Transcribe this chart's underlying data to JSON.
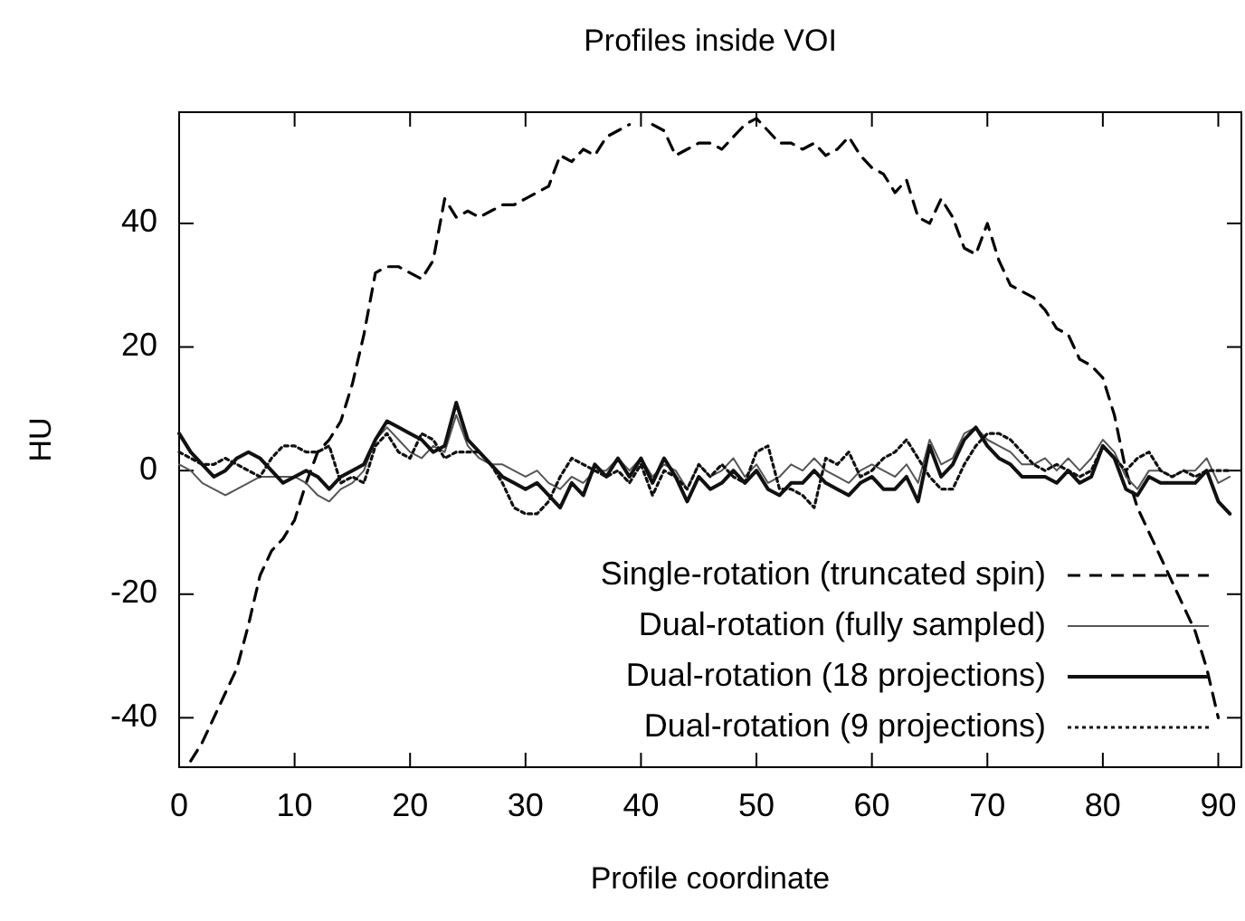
{
  "chart_data": {
    "type": "line",
    "title": "Profiles inside VOI",
    "xlabel": "Profile coordinate",
    "ylabel": "HU",
    "x": [
      0,
      1,
      2,
      3,
      4,
      5,
      6,
      7,
      8,
      9,
      10,
      11,
      12,
      13,
      14,
      15,
      16,
      17,
      18,
      19,
      20,
      21,
      22,
      23,
      24,
      25,
      26,
      27,
      28,
      29,
      30,
      31,
      32,
      33,
      34,
      35,
      36,
      37,
      38,
      39,
      40,
      41,
      42,
      43,
      44,
      45,
      46,
      47,
      48,
      49,
      50,
      51,
      52,
      53,
      54,
      55,
      56,
      57,
      58,
      59,
      60,
      61,
      62,
      63,
      64,
      65,
      66,
      67,
      68,
      69,
      70,
      71,
      72,
      73,
      74,
      75,
      76,
      77,
      78,
      79,
      80,
      81,
      82,
      83,
      84,
      85,
      86,
      87,
      88,
      89,
      90,
      91
    ],
    "series": [
      {
        "name": "Single-rotation (truncated spin)",
        "color": "#000000",
        "line_style": "dashed",
        "values": [
          null,
          -47,
          -44,
          -40,
          -36,
          -32,
          -25,
          -17,
          -13,
          -11,
          -8,
          -2,
          3,
          5,
          8,
          14,
          22,
          32,
          33,
          33,
          32,
          31,
          34,
          44,
          41,
          42,
          41,
          42,
          43,
          43,
          44,
          45,
          46,
          51,
          50,
          52,
          51,
          54,
          55,
          56,
          null,
          56,
          55,
          51,
          52,
          53,
          53,
          52,
          54,
          56,
          57,
          55,
          53,
          53,
          52,
          53,
          51,
          52,
          54,
          51,
          49,
          48,
          45,
          47,
          41,
          40,
          44,
          41,
          36,
          35,
          40,
          34,
          30,
          29,
          28,
          26,
          23,
          22,
          18,
          17,
          15,
          9,
          0,
          -6,
          -10,
          -14,
          -18,
          -22,
          -26,
          -32,
          -40,
          null
        ]
      },
      {
        "name": "Dual-rotation (fully sampled)",
        "color": "#555555",
        "line_style": "solid",
        "values": [
          1,
          0,
          -2,
          -3,
          -4,
          -3,
          -2,
          -1,
          -1,
          -1,
          -1,
          -2,
          -4,
          -5,
          -3,
          -2,
          0,
          5,
          7,
          5,
          3,
          2,
          4,
          3,
          9,
          4,
          2,
          1,
          1,
          0,
          -1,
          0,
          -2,
          -3,
          -1,
          -2,
          0,
          0,
          2,
          0,
          2,
          -1,
          1,
          0,
          -3,
          1,
          -1,
          0,
          2,
          -1,
          1,
          -2,
          -1,
          1,
          0,
          2,
          0,
          -1,
          -2,
          0,
          1,
          0,
          -1,
          1,
          -2,
          5,
          1,
          2,
          6,
          7,
          5,
          4,
          3,
          1,
          1,
          2,
          0,
          2,
          0,
          2,
          5,
          3,
          -1,
          -3,
          0,
          0,
          -1,
          0,
          0,
          2,
          -2,
          -1
        ]
      },
      {
        "name": "Dual-rotation (18 projections)",
        "color": "#111111",
        "line_style": "solid",
        "values": [
          6,
          3,
          1,
          -1,
          0,
          2,
          3,
          2,
          0,
          -2,
          -1,
          0,
          -1,
          -3,
          -1,
          0,
          1,
          5,
          8,
          7,
          6,
          5,
          3,
          4,
          11,
          5,
          3,
          1,
          -1,
          -2,
          -3,
          -2,
          -4,
          -6,
          -2,
          -4,
          1,
          -1,
          2,
          -1,
          2,
          -2,
          2,
          -1,
          -5,
          -1,
          -3,
          -2,
          0,
          -2,
          0,
          -3,
          -4,
          -2,
          -2,
          0,
          -2,
          -3,
          -4,
          -2,
          -1,
          -3,
          -3,
          -1,
          -5,
          4,
          -1,
          1,
          5,
          7,
          4,
          2,
          1,
          -1,
          -1,
          -1,
          -2,
          0,
          -2,
          -1,
          4,
          2,
          -3,
          -4,
          -1,
          -2,
          -2,
          -2,
          -2,
          0,
          -5,
          -7
        ]
      },
      {
        "name": "Dual-rotation (9 projections)",
        "color": "#111111",
        "line_style": "dotted",
        "values": [
          3,
          2,
          1,
          1,
          2,
          1,
          0,
          -1,
          2,
          4,
          4,
          3,
          3,
          4,
          -2,
          -1,
          -2,
          4,
          6,
          3,
          2,
          6,
          5,
          2,
          3,
          3,
          3,
          1,
          -2,
          -6,
          -7,
          -7,
          -5,
          -1,
          2,
          1,
          0,
          -1,
          0,
          -2,
          1,
          -4,
          0,
          -1,
          -3,
          1,
          -1,
          1,
          -1,
          -2,
          3,
          4,
          -3,
          -3,
          -4,
          -6,
          2,
          1,
          3,
          -1,
          0,
          2,
          3,
          5,
          2,
          -1,
          -3,
          -3,
          1,
          4,
          6,
          6,
          5,
          3,
          1,
          0,
          1,
          0,
          -1,
          0,
          4,
          2,
          0,
          2,
          3,
          0,
          -1,
          0,
          -1,
          0,
          0,
          0
        ]
      }
    ],
    "xlim": [
      0,
      92
    ],
    "xticks": [
      0,
      10,
      20,
      30,
      40,
      50,
      60,
      70,
      80,
      90
    ],
    "ylim": [
      -48,
      58
    ],
    "yticks": [
      -40,
      -20,
      0,
      20,
      40
    ],
    "grid": false,
    "legend": "bottom right"
  }
}
